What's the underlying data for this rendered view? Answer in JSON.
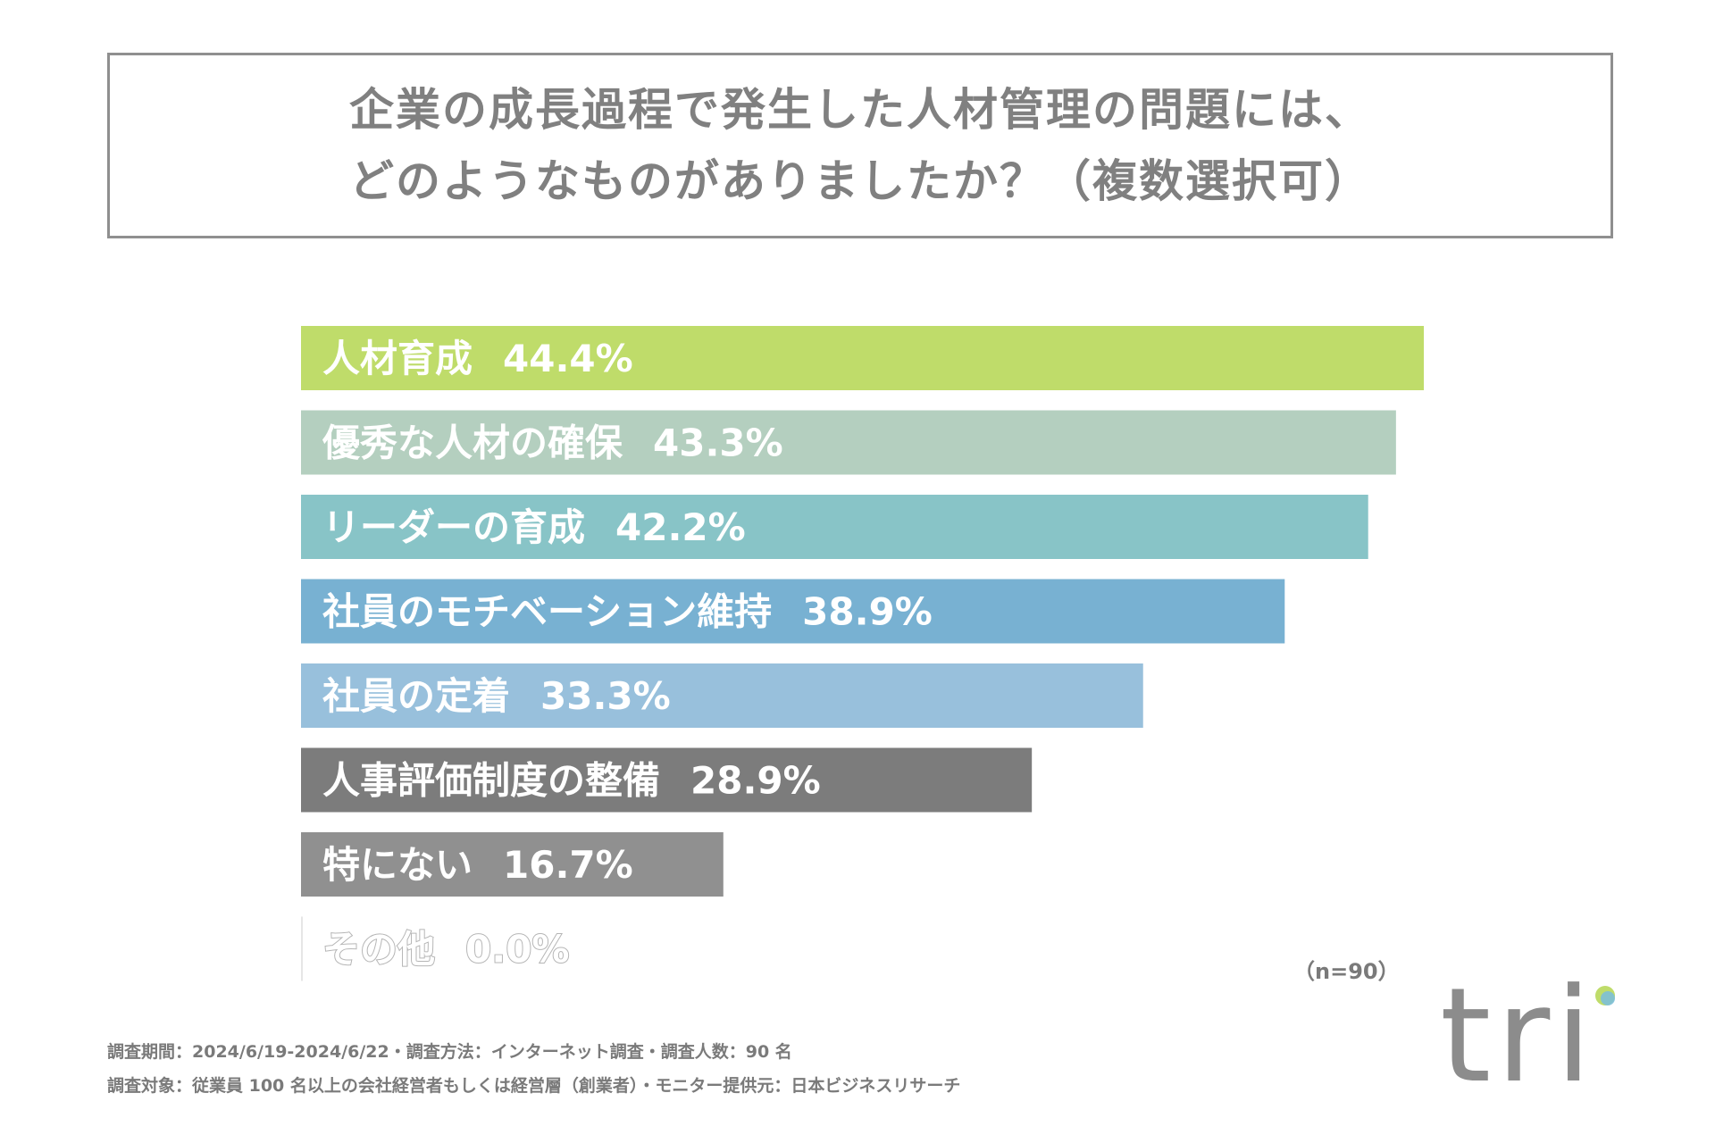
{
  "title": {
    "line1": "企業の成長過程で発生した人材管理の問題には、",
    "line2": "どのようなものがありましたか？（複数選択可）"
  },
  "chart_data": {
    "type": "bar",
    "orientation": "horizontal",
    "title": "企業の成長過程で発生した人材管理の問題には、どのようなものがありましたか？（複数選択可）",
    "unit": "%",
    "xlim": [
      0,
      44.4
    ],
    "categories": [
      "人材育成",
      "優秀な人材の確保",
      "リーダーの育成",
      "社員のモチベーション維持",
      "社員の定着",
      "人事評価制度の整備",
      "特にない",
      "その他"
    ],
    "values": [
      44.4,
      43.3,
      42.2,
      38.9,
      33.3,
      28.9,
      16.7,
      0.0
    ],
    "value_labels": [
      "44.4%",
      "43.3%",
      "42.2%",
      "38.9%",
      "33.3%",
      "28.9%",
      "16.7%",
      "0.0%"
    ],
    "colors": [
      "#bfdc6a",
      "#b4cfbf",
      "#88c4c7",
      "#78b1d2",
      "#98c0dc",
      "#7c7c7c",
      "#909090",
      "#e6e6e6"
    ],
    "sample_size": "（n=90）"
  },
  "footnotes": {
    "line1": "調査期間：2024/6/19-2024/6/22・調査方法：インターネット調査・調査人数：90 名",
    "line2": "調査対象：従業員 100 名以上の会社経営者もしくは経営層（創業者）・モニター提供元：日本ビジネスリサーチ"
  },
  "logo": {
    "text": "tri",
    "colors": [
      "#bfdc6a",
      "#7dbfd8"
    ]
  }
}
